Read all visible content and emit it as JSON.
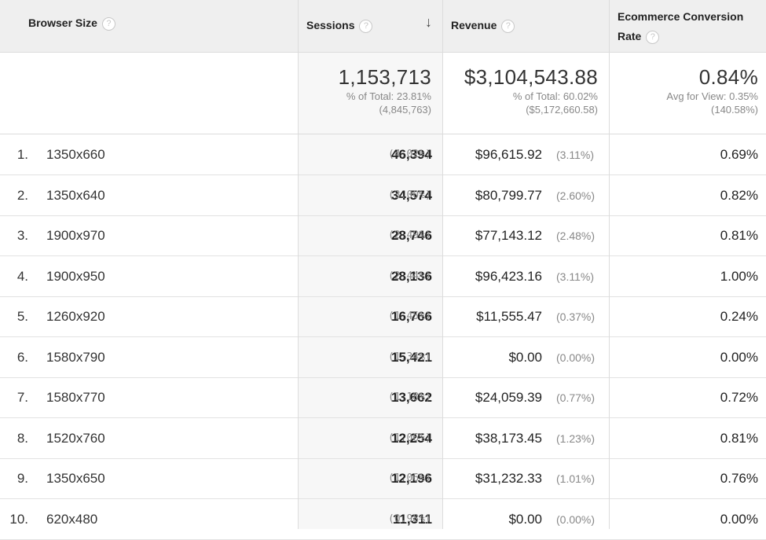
{
  "header": {
    "browser_size": "Browser Size",
    "sessions": "Sessions",
    "revenue": "Revenue",
    "conversion_line1": "Ecommerce Conversion",
    "conversion_line2": "Rate",
    "help_glyph": "?",
    "sort_arrow": "↓"
  },
  "totals": {
    "sessions": {
      "value": "1,153,713",
      "label": "% of Total: 23.81%",
      "sub": "(4,845,763)"
    },
    "revenue": {
      "value": "$3,104,543.88",
      "label": "% of Total: 60.02%",
      "sub": "($5,172,660.58)"
    },
    "conversion": {
      "value": "0.84%",
      "label": "Avg for View: 0.35%",
      "sub": "(140.58%)"
    }
  },
  "rows": [
    {
      "idx": "1.",
      "size": "1350x660",
      "sessions": "46,394",
      "sessions_pct": "(4.02%)",
      "revenue": "$96,615.92",
      "revenue_pct": "(3.11%)",
      "conversion": "0.69%"
    },
    {
      "idx": "2.",
      "size": "1350x640",
      "sessions": "34,574",
      "sessions_pct": "(3.00%)",
      "revenue": "$80,799.77",
      "revenue_pct": "(2.60%)",
      "conversion": "0.82%"
    },
    {
      "idx": "3.",
      "size": "1900x970",
      "sessions": "28,746",
      "sessions_pct": "(2.49%)",
      "revenue": "$77,143.12",
      "revenue_pct": "(2.48%)",
      "conversion": "0.81%"
    },
    {
      "idx": "4.",
      "size": "1900x950",
      "sessions": "28,136",
      "sessions_pct": "(2.44%)",
      "revenue": "$96,423.16",
      "revenue_pct": "(3.11%)",
      "conversion": "1.00%"
    },
    {
      "idx": "5.",
      "size": "1260x920",
      "sessions": "16,766",
      "sessions_pct": "(1.45%)",
      "revenue": "$11,555.47",
      "revenue_pct": "(0.37%)",
      "conversion": "0.24%"
    },
    {
      "idx": "6.",
      "size": "1580x790",
      "sessions": "15,421",
      "sessions_pct": "(1.34%)",
      "revenue": "$0.00",
      "revenue_pct": "(0.00%)",
      "conversion": "0.00%"
    },
    {
      "idx": "7.",
      "size": "1580x770",
      "sessions": "13,662",
      "sessions_pct": "(1.18%)",
      "revenue": "$24,059.39",
      "revenue_pct": "(0.77%)",
      "conversion": "0.72%"
    },
    {
      "idx": "8.",
      "size": "1520x760",
      "sessions": "12,254",
      "sessions_pct": "(1.06%)",
      "revenue": "$38,173.45",
      "revenue_pct": "(1.23%)",
      "conversion": "0.81%"
    },
    {
      "idx": "9.",
      "size": "1350x650",
      "sessions": "12,196",
      "sessions_pct": "(1.06%)",
      "revenue": "$31,232.33",
      "revenue_pct": "(1.01%)",
      "conversion": "0.76%"
    },
    {
      "idx": "10.",
      "size": "620x480",
      "sessions": "11,311",
      "sessions_pct": "(0.98%)",
      "revenue": "$0.00",
      "revenue_pct": "(0.00%)",
      "conversion": "0.00%"
    }
  ]
}
